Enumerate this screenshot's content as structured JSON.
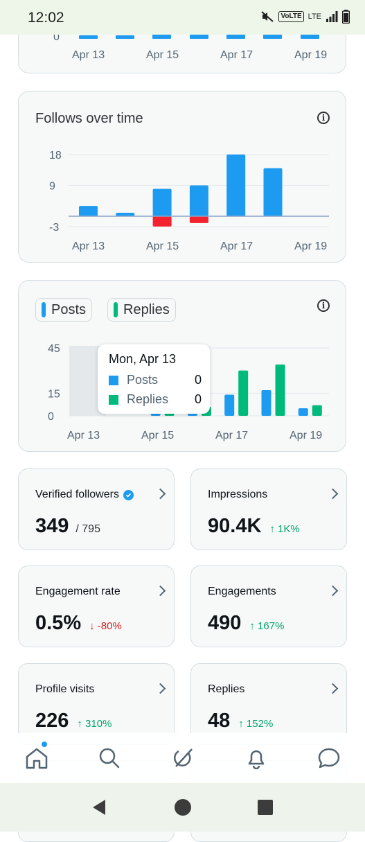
{
  "status_bar": {
    "time": "12:02",
    "network": "LTE",
    "volte": "VoLTE"
  },
  "top_card": {
    "y_tick_visible": "0",
    "x_labels": [
      "Apr 13",
      "Apr 15",
      "Apr 17",
      "Apr 19"
    ]
  },
  "follows_card": {
    "title": "Follows over time",
    "info_icon": "info-icon",
    "chart_data": {
      "type": "bar",
      "title": "Follows over time",
      "categories": [
        "Apr 13",
        "Apr 14",
        "Apr 15",
        "Apr 16",
        "Apr 17",
        "Apr 18"
      ],
      "series": [
        {
          "values": [
            3,
            1,
            8,
            9,
            18,
            14
          ],
          "color": "#1d9bf0"
        },
        {
          "values": [
            0,
            0,
            -3,
            -2,
            0,
            0
          ],
          "color": "#f4212e"
        }
      ],
      "y_ticks": [
        "18",
        "9",
        "-3"
      ],
      "x_labels": [
        "Apr 13",
        "Apr 15",
        "Apr 17",
        "Apr 19"
      ],
      "ylim": [
        -3,
        18
      ]
    }
  },
  "posts_card": {
    "legend": {
      "posts": "Posts",
      "replies": "Replies"
    },
    "info_icon": "info-icon",
    "chart_data": {
      "type": "bar",
      "categories": [
        "Apr 13",
        "Apr 14",
        "Apr 15",
        "Apr 16",
        "Apr 17",
        "Apr 18",
        "Apr 19"
      ],
      "series": [
        {
          "name": "Posts",
          "values": [
            0,
            0,
            5,
            5,
            14,
            17,
            5
          ],
          "color": "#1d9bf0"
        },
        {
          "name": "Replies",
          "values": [
            0,
            0,
            6,
            6,
            30,
            34,
            7
          ],
          "color": "#00ba7c"
        }
      ],
      "y_ticks": [
        "45",
        "15",
        "0"
      ],
      "x_labels": [
        "Apr 13",
        "Apr 15",
        "Apr 17",
        "Apr 19"
      ],
      "ylim": [
        0,
        45
      ],
      "highlighted_category": "Apr 13"
    },
    "tooltip": {
      "title": "Mon, Apr 13",
      "rows": [
        {
          "label": "Posts",
          "value": "0",
          "color": "#1d9bf0"
        },
        {
          "label": "Replies",
          "value": "0",
          "color": "#00ba7c"
        }
      ]
    }
  },
  "stats": [
    {
      "label": "Verified followers",
      "value": "349",
      "sub": "/ 795",
      "verified": true
    },
    {
      "label": "Impressions",
      "value": "90.4K",
      "delta": "↑ 1K%",
      "direction": "up"
    },
    {
      "label": "Engagement rate",
      "value": "0.5%",
      "delta": "↓ -80%",
      "direction": "down"
    },
    {
      "label": "Engagements",
      "value": "490",
      "delta": "↑ 167%",
      "direction": "up"
    },
    {
      "label": "Profile visits",
      "value": "226",
      "delta": "↑ 310%",
      "direction": "up"
    },
    {
      "label": "Replies",
      "value": "48",
      "delta": "↑ 152%",
      "direction": "up"
    }
  ],
  "bottom_nav": [
    "home-icon",
    "search-icon",
    "grok-icon",
    "notifications-icon",
    "messages-icon"
  ],
  "colors": {
    "accent": "#1d9bf0",
    "positive": "#00ba7c",
    "negative": "#f4212e"
  }
}
